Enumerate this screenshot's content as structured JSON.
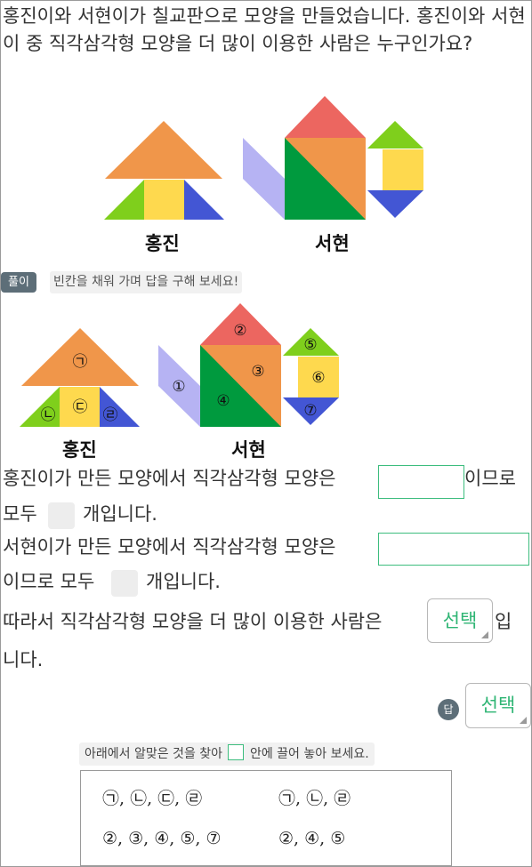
{
  "question": "홍진이와 서현이가 칠교판으로 모양을 만들었습니다. 홍진이와 서현이 중 직각삼각형 모양을 더 많이 이용한 사람은 누구인가요?",
  "figures": {
    "hongjin_label": "홍진",
    "seohyeon_label": "서현"
  },
  "solution": {
    "badge": "풀이",
    "hint": "빈칸을 채워 가며 답을 구해 보세요!",
    "labeled_figures": {
      "hongjin_label": "홍진",
      "seohyeon_label": "서현",
      "hongjin_marks": [
        "㉠",
        "㉡",
        "㉢",
        "㉣"
      ],
      "seohyeon_marks": [
        "①",
        "②",
        "③",
        "④",
        "⑤",
        "⑥",
        "⑦"
      ]
    },
    "line1_a": "홍진이가 만든 모양에서 직각삼각형 모양은",
    "line1_b": "이므로",
    "line1_c": "모두",
    "line1_d": "개입니다.",
    "line2_a": "서현이가 만든 모양에서 직각삼각형 모양은",
    "line2_b": "이므로 모두",
    "line2_c": "개입니다.",
    "line3_a": "따라서 직각삼각형 모양을 더 많이 이용한 사람은",
    "line3_b": "입",
    "line3_c": "니다.",
    "select_label": "선택"
  },
  "answer": {
    "badge": "답",
    "select_label": "선택"
  },
  "drag": {
    "hint_before": "아래에서 알맞은 것을 찾아",
    "hint_after": "안에 끌어 놓아 보세요.",
    "options": [
      "㉠, ㉡, ㉢, ㉣",
      "㉠, ㉡, ㉣",
      "②, ③, ④, ⑤, ⑦",
      "②, ④, ⑤"
    ]
  },
  "colors": {
    "orange": "#f0964a",
    "green": "#009a3e",
    "lime": "#7fcf1c",
    "yellow": "#fed94e",
    "blue": "#4356d4",
    "red": "#ec6660",
    "lavender": "#b6b3f3",
    "accent": "#2fb574",
    "badge": "#5d6e78"
  }
}
